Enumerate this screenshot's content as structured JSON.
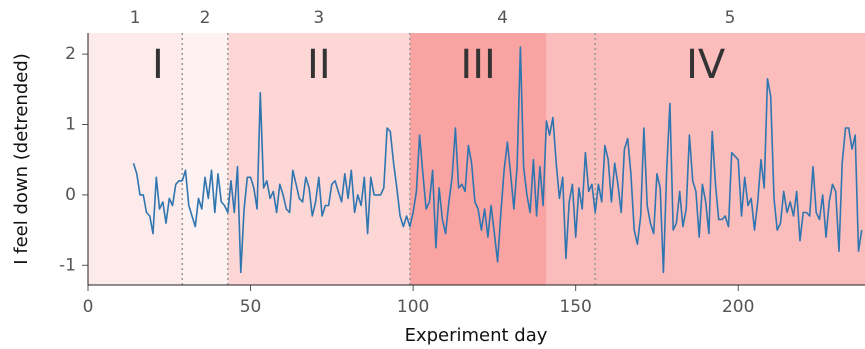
{
  "chart_data": {
    "type": "line",
    "xlabel": "Experiment day",
    "ylabel": "I feel down (detrended)",
    "xlim": [
      0,
      239
    ],
    "ylim": [
      -1.28,
      2.3
    ],
    "xticks": [
      0,
      50,
      100,
      150,
      200
    ],
    "yticks": [
      -1,
      0,
      1,
      2
    ],
    "shading": [
      {
        "start": 0,
        "end": 29,
        "color": "#fdeaea"
      },
      {
        "start": 29,
        "end": 43,
        "color": "#fef1f1"
      },
      {
        "start": 43,
        "end": 99,
        "color": "#fdd6d6"
      },
      {
        "start": 99,
        "end": 141,
        "color": "#f9a3a3"
      },
      {
        "start": 141,
        "end": 239,
        "color": "#fbbcbc"
      }
    ],
    "phases": [
      {
        "label": "1",
        "start": 0,
        "end": 29
      },
      {
        "label": "2",
        "start": 29,
        "end": 43
      },
      {
        "label": "3",
        "start": 43,
        "end": 99
      },
      {
        "label": "4",
        "start": 99,
        "end": 156
      },
      {
        "label": "5",
        "start": 156,
        "end": 239
      }
    ],
    "periods": [
      {
        "label": "I",
        "start": 0,
        "end": 43
      },
      {
        "label": "II",
        "start": 43,
        "end": 99
      },
      {
        "label": "III",
        "start": 99,
        "end": 141
      },
      {
        "label": "IV",
        "start": 141,
        "end": 239
      }
    ],
    "series": [
      {
        "color": "#2f76b0",
        "x": [
          14,
          15,
          16,
          17,
          18,
          19,
          20,
          21,
          22,
          23,
          24,
          25,
          26,
          27,
          28,
          29,
          30,
          31,
          32,
          33,
          34,
          35,
          36,
          37,
          38,
          39,
          40,
          41,
          42,
          43,
          44,
          45,
          46,
          47,
          48,
          49,
          50,
          51,
          52,
          53,
          54,
          55,
          56,
          57,
          58,
          59,
          60,
          61,
          62,
          63,
          64,
          65,
          66,
          67,
          68,
          69,
          70,
          71,
          72,
          73,
          74,
          75,
          76,
          77,
          78,
          79,
          80,
          81,
          82,
          83,
          84,
          85,
          86,
          87,
          88,
          89,
          90,
          91,
          92,
          93,
          94,
          95,
          96,
          97,
          98,
          99,
          100,
          101,
          102,
          103,
          104,
          105,
          106,
          107,
          108,
          109,
          110,
          111,
          112,
          113,
          114,
          115,
          116,
          117,
          118,
          119,
          120,
          121,
          122,
          123,
          124,
          125,
          126,
          127,
          128,
          129,
          130,
          131,
          132,
          133,
          134,
          135,
          136,
          137,
          138,
          139,
          140,
          141,
          142,
          143,
          144,
          145,
          146,
          147,
          148,
          149,
          150,
          151,
          152,
          153,
          154,
          155,
          156,
          157,
          158,
          159,
          160,
          161,
          162,
          163,
          164,
          165,
          166,
          167,
          168,
          169,
          170,
          171,
          172,
          173,
          174,
          175,
          176,
          177,
          178,
          179,
          180,
          181,
          182,
          183,
          184,
          185,
          186,
          187,
          188,
          189,
          190,
          191,
          192,
          193,
          194,
          195,
          196,
          197,
          198,
          199,
          200,
          201,
          202,
          203,
          204,
          205,
          206,
          207,
          208,
          209,
          210,
          211,
          212,
          213,
          214,
          215,
          216,
          217,
          218,
          219,
          220,
          221,
          222,
          223,
          224,
          225,
          226,
          227,
          228,
          229,
          230,
          231,
          232,
          233,
          234,
          235,
          236,
          237,
          238
        ],
        "values": [
          0.45,
          0.3,
          0,
          0,
          -0.25,
          -0.3,
          -0.55,
          0.25,
          -0.2,
          -0.1,
          -0.4,
          -0.05,
          -0.15,
          0.15,
          0.2,
          0.2,
          0.35,
          -0.15,
          -0.3,
          -0.45,
          -0.05,
          -0.2,
          0.25,
          -0.05,
          0.35,
          -0.25,
          0.3,
          -0.1,
          -0.15,
          -0.25,
          0.2,
          -0.25,
          0.4,
          -1.1,
          -0.2,
          0.25,
          0.25,
          0.1,
          -0.2,
          1.45,
          0.1,
          0.2,
          -0.05,
          0.05,
          -0.25,
          0.15,
          0,
          -0.2,
          -0.25,
          0.35,
          0.15,
          -0.05,
          -0.1,
          0.25,
          0.1,
          -0.3,
          -0.1,
          0.25,
          -0.3,
          -0.15,
          -0.15,
          0.15,
          0.2,
          0.05,
          -0.1,
          0.3,
          -0.05,
          0.35,
          -0.25,
          0,
          -0.15,
          0.25,
          -0.55,
          0.25,
          0,
          0,
          0,
          0.1,
          0.95,
          0.9,
          0.45,
          0.1,
          -0.3,
          -0.45,
          -0.3,
          -0.45,
          -0.25,
          0.05,
          0.85,
          0.3,
          -0.2,
          -0.1,
          0.35,
          -0.75,
          0.1,
          -0.35,
          -0.55,
          -0.1,
          0.25,
          0.95,
          0.1,
          0.15,
          0.05,
          0.7,
          0.45,
          -0.1,
          -0.2,
          -0.5,
          -0.2,
          -0.6,
          -0.15,
          -0.55,
          -0.95,
          -0.25,
          0.35,
          0.75,
          0.3,
          -0.2,
          0.4,
          2.1,
          0.4,
          0,
          -0.25,
          0.5,
          -0.3,
          0.4,
          -0.15,
          1.05,
          0.85,
          1.1,
          0.45,
          -0.05,
          0.25,
          -0.9,
          -0.1,
          0.15,
          -0.6,
          0.1,
          -0.2,
          0.6,
          0.05,
          0.15,
          -0.25,
          0.15,
          -0.1,
          0.7,
          0.5,
          -0.1,
          0.45,
          0.15,
          -0.25,
          0.65,
          0.8,
          0.3,
          -0.5,
          -0.7,
          -0.3,
          0.95,
          -0.15,
          -0.4,
          -0.55,
          0.3,
          0.1,
          -1.1,
          0.35,
          1.3,
          -0.5,
          -0.4,
          0.05,
          -0.45,
          -0.2,
          0.85,
          0.2,
          0.05,
          -0.6,
          0.15,
          -0.1,
          -0.55,
          0.9,
          0.15,
          -0.35,
          -0.35,
          -0.3,
          -0.45,
          0.6,
          0.55,
          0.5,
          -0.3,
          0.25,
          -0.15,
          -0.05,
          -0.5,
          -0.1,
          0.5,
          0.1,
          1.65,
          1.4,
          -0.05,
          -0.5,
          -0.4,
          0.05,
          -0.25,
          -0.1,
          -0.3,
          0.05,
          -0.65,
          -0.25,
          -0.25,
          -0.3,
          0.4,
          -0.25,
          -0.35,
          0,
          -0.6,
          -0.1,
          0.15,
          0.05,
          -0.8,
          0.45,
          0.95,
          0.95,
          0.65,
          0.85,
          -0.8,
          -0.5
        ]
      }
    ]
  }
}
